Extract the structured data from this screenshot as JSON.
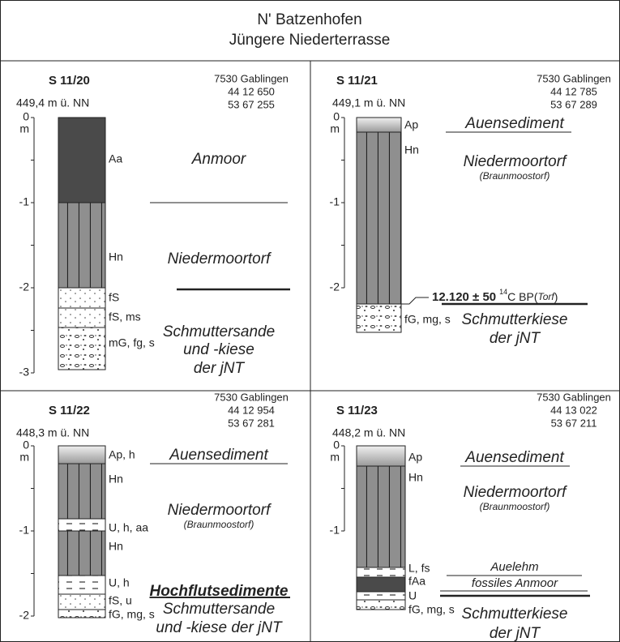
{
  "header": {
    "title_lines": [
      "N' Batzenhofen",
      "Jüngere Niederterrasse"
    ]
  },
  "profiles": [
    {
      "name": "S 11/20",
      "elevation": "449,4 m ü. NN",
      "coords": [
        "7530 Gablingen",
        "44 12 650",
        "53 67 255"
      ],
      "depth_labels": [
        "0",
        "-1",
        "-2",
        "-3"
      ],
      "depth_unit": "m",
      "layers": [
        "Aa",
        "Hn",
        "fS",
        "fS, ms",
        "mG, fg, s"
      ],
      "interpretations": [
        "Anmoor",
        "Niedermoortorf",
        "Schmuttersande",
        "und -kiese",
        "der jNT"
      ]
    },
    {
      "name": "S 11/21",
      "elevation": "449,1 m ü. NN",
      "coords": [
        "7530 Gablingen",
        "44 12 785",
        "53 67 289"
      ],
      "depth_labels": [
        "0",
        "-1",
        "-2"
      ],
      "depth_unit": "m",
      "layers": [
        "Ap",
        "Hn",
        "fG, mg, s"
      ],
      "interpretations": [
        "Auensediment",
        "Niedermoortorf",
        "(Braunmoostorf)",
        "Schmutterkiese",
        "der jNT"
      ],
      "dating": {
        "age": "12.120 ± 50",
        "isotope": "14",
        "unit": "C BP(",
        "material": "Torf",
        "close": ")"
      }
    },
    {
      "name": "S 11/22",
      "elevation": "448,3 m ü. NN",
      "coords": [
        "7530 Gablingen",
        "44 12 954",
        "53 67 281"
      ],
      "depth_labels": [
        "0",
        "-1",
        "-2"
      ],
      "depth_unit": "m",
      "layers": [
        "Ap, h",
        "Hn",
        "U, h, aa",
        "Hn",
        "U, h",
        "fS, u",
        "fG, mg, s"
      ],
      "interpretations": [
        "Auensediment",
        "Niedermoortorf",
        "(Braunmoostorf)",
        "Hochflutsedimente",
        "Schmuttersande",
        "und -kiese der jNT"
      ]
    },
    {
      "name": "S 11/23",
      "elevation": "448,2 m ü. NN",
      "coords": [
        "7530 Gablingen",
        "44 13 022",
        "53 67 211"
      ],
      "depth_labels": [
        "0",
        "-1"
      ],
      "depth_unit": "m",
      "layers": [
        "Ap",
        "Hn",
        "L, fs",
        "fAa",
        "U",
        "fG, mg, s"
      ],
      "interpretations": [
        "Auensediment",
        "Niedermoortorf",
        "(Braunmoostorf)",
        "Auelehm",
        "fossiles Anmoor",
        "Schmutterkiese",
        "der jNT"
      ]
    }
  ]
}
